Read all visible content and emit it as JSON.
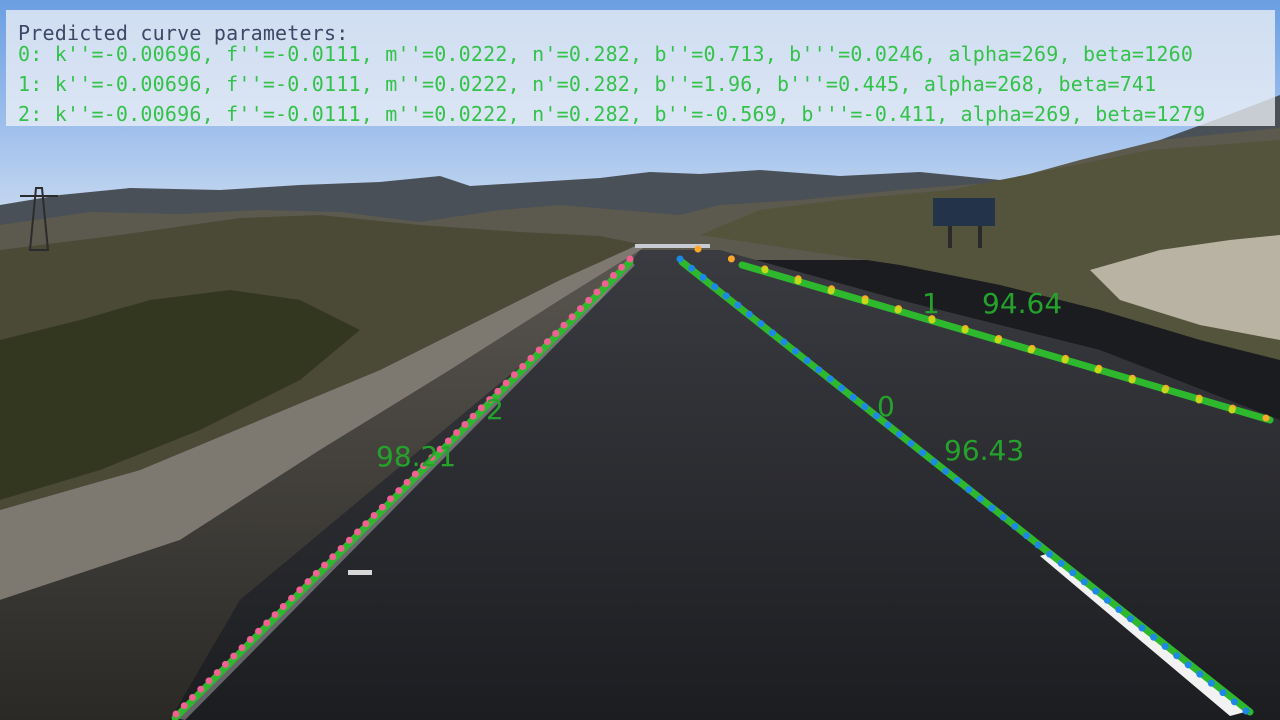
{
  "overlay": {
    "title": "Predicted curve parameters:",
    "lines": [
      "0: k''=-0.00696, f''=-0.0111, m''=0.0222, n'=0.282, b''=0.713, b'''=0.0246, alpha=269, beta=1260",
      "1: k''=-0.00696, f''=-0.0111, m''=0.0222, n'=0.282, b''=1.96, b'''=0.445, alpha=268, beta=741",
      "2: k''=-0.00696, f''=-0.0111, m''=0.0222, n'=0.282, b''=-0.569, b'''=-0.411, alpha=269, beta=1279"
    ],
    "text_color": "#33c24a",
    "title_color": "#3d4766"
  },
  "lanes": [
    {
      "id": "0",
      "score": "96.43",
      "point_color": "#1e88e5"
    },
    {
      "id": "1",
      "score": "94.64",
      "point_color": "#ffa726"
    },
    {
      "id": "2",
      "score": "98.21",
      "point_color": "#f06292"
    }
  ],
  "fit_line_color": "#2eb82e"
}
